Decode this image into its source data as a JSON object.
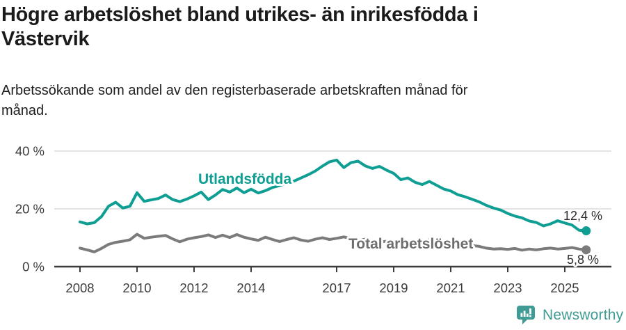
{
  "header": {
    "title": "Högre arbetslöshet bland utrikes- än inrikesfödda i\nVästervik",
    "subtitle": "Arbetssökande som andel av den registerbaserade arbetskraften månad för\nmånad."
  },
  "footer": {
    "brand": "Newsworthy",
    "logo_icon": "newsworthy-speech-bubble-bar-chart-icon"
  },
  "colors": {
    "foreign_born_line": "#0f9e93",
    "total_line": "#7b7b7b",
    "total_label": "#6e6e6e",
    "grid": "#dcdcdc",
    "axis": "#3c3c3c",
    "tick_label": "#3c3c3c",
    "end_value_label": "#2b2b2b",
    "brand_teal": "#3f9b93",
    "background": "#ffffff"
  },
  "chart_data": {
    "type": "line",
    "title": "Högre arbetslöshet bland utrikes- än inrikesfödda i Västervik",
    "subtitle": "Arbetssökande som andel av den registerbaserade arbetskraften månad för månad.",
    "xlabel": "",
    "ylabel": "",
    "grid": "horizontal",
    "legend_position": "inline-labels",
    "ylim": [
      0,
      40
    ],
    "x_range": [
      2008.0,
      2025.75
    ],
    "y_ticks": [
      {
        "value": 0,
        "label": "0 %"
      },
      {
        "value": 20,
        "label": "20 %"
      },
      {
        "value": 40,
        "label": "40 %"
      }
    ],
    "x_ticks": [
      {
        "value": 2008,
        "label": "2008"
      },
      {
        "value": 2010,
        "label": "2010"
      },
      {
        "value": 2012,
        "label": "2012"
      },
      {
        "value": 2014,
        "label": "2014"
      },
      {
        "value": 2017,
        "label": "2017"
      },
      {
        "value": 2019,
        "label": "2019"
      },
      {
        "value": 2021,
        "label": "2021"
      },
      {
        "value": 2023,
        "label": "2023"
      },
      {
        "value": 2025,
        "label": "2025"
      }
    ],
    "series": [
      {
        "name": "Utlandsfödda",
        "color": "#0f9e93",
        "end_value": 12.4,
        "end_label": "12,4 %",
        "points": [
          [
            2008.0,
            15.5
          ],
          [
            2008.25,
            14.8
          ],
          [
            2008.5,
            15.2
          ],
          [
            2008.75,
            17.3
          ],
          [
            2009.0,
            20.9
          ],
          [
            2009.25,
            22.3
          ],
          [
            2009.5,
            20.3
          ],
          [
            2009.75,
            20.9
          ],
          [
            2010.0,
            25.6
          ],
          [
            2010.25,
            22.6
          ],
          [
            2010.5,
            23.1
          ],
          [
            2010.75,
            23.6
          ],
          [
            2011.0,
            24.8
          ],
          [
            2011.25,
            23.2
          ],
          [
            2011.5,
            22.5
          ],
          [
            2011.75,
            23.4
          ],
          [
            2012.0,
            24.5
          ],
          [
            2012.25,
            25.8
          ],
          [
            2012.5,
            23.2
          ],
          [
            2012.75,
            24.8
          ],
          [
            2013.0,
            26.7
          ],
          [
            2013.25,
            25.8
          ],
          [
            2013.5,
            27.2
          ],
          [
            2013.75,
            25.6
          ],
          [
            2014.0,
            26.8
          ],
          [
            2014.25,
            25.5
          ],
          [
            2014.5,
            26.3
          ],
          [
            2014.75,
            27.4
          ],
          [
            2015.0,
            28.1
          ],
          [
            2015.25,
            28.8
          ],
          [
            2015.5,
            29.6
          ],
          [
            2015.75,
            30.7
          ],
          [
            2016.0,
            31.8
          ],
          [
            2016.25,
            33.1
          ],
          [
            2016.5,
            34.8
          ],
          [
            2016.75,
            36.3
          ],
          [
            2017.0,
            36.9
          ],
          [
            2017.25,
            34.3
          ],
          [
            2017.5,
            36.0
          ],
          [
            2017.75,
            36.5
          ],
          [
            2018.0,
            34.9
          ],
          [
            2018.25,
            34.0
          ],
          [
            2018.5,
            34.7
          ],
          [
            2018.75,
            33.4
          ],
          [
            2019.0,
            32.3
          ],
          [
            2019.25,
            30.1
          ],
          [
            2019.5,
            30.7
          ],
          [
            2019.75,
            29.2
          ],
          [
            2020.0,
            28.4
          ],
          [
            2020.25,
            29.5
          ],
          [
            2020.5,
            28.2
          ],
          [
            2020.75,
            26.9
          ],
          [
            2021.0,
            26.2
          ],
          [
            2021.25,
            24.9
          ],
          [
            2021.5,
            24.2
          ],
          [
            2021.75,
            23.3
          ],
          [
            2022.0,
            22.4
          ],
          [
            2022.25,
            21.2
          ],
          [
            2022.5,
            20.3
          ],
          [
            2022.75,
            19.6
          ],
          [
            2023.0,
            18.4
          ],
          [
            2023.25,
            17.5
          ],
          [
            2023.5,
            16.9
          ],
          [
            2023.75,
            15.8
          ],
          [
            2024.0,
            15.3
          ],
          [
            2024.25,
            14.1
          ],
          [
            2024.5,
            14.8
          ],
          [
            2024.75,
            15.9
          ],
          [
            2025.0,
            15.1
          ],
          [
            2025.25,
            14.4
          ],
          [
            2025.5,
            12.6
          ],
          [
            2025.75,
            12.4
          ]
        ]
      },
      {
        "name": "Total arbetslöshet",
        "color": "#7b7b7b",
        "label_color": "#6e6e6e",
        "end_value": 5.8,
        "end_label": "5,8 %",
        "points": [
          [
            2008.0,
            6.4
          ],
          [
            2008.25,
            5.8
          ],
          [
            2008.5,
            5.1
          ],
          [
            2008.75,
            6.3
          ],
          [
            2009.0,
            7.7
          ],
          [
            2009.25,
            8.4
          ],
          [
            2009.5,
            8.8
          ],
          [
            2009.75,
            9.3
          ],
          [
            2010.0,
            11.2
          ],
          [
            2010.25,
            9.8
          ],
          [
            2010.5,
            10.2
          ],
          [
            2010.75,
            10.5
          ],
          [
            2011.0,
            10.8
          ],
          [
            2011.25,
            9.6
          ],
          [
            2011.5,
            8.6
          ],
          [
            2011.75,
            9.5
          ],
          [
            2012.0,
            10.0
          ],
          [
            2012.25,
            10.4
          ],
          [
            2012.5,
            11.0
          ],
          [
            2012.75,
            10.1
          ],
          [
            2013.0,
            10.9
          ],
          [
            2013.25,
            10.1
          ],
          [
            2013.5,
            11.1
          ],
          [
            2013.75,
            10.2
          ],
          [
            2014.0,
            9.6
          ],
          [
            2014.25,
            9.1
          ],
          [
            2014.5,
            10.2
          ],
          [
            2014.75,
            9.4
          ],
          [
            2015.0,
            8.7
          ],
          [
            2015.25,
            9.4
          ],
          [
            2015.5,
            10.0
          ],
          [
            2015.75,
            9.2
          ],
          [
            2016.0,
            8.8
          ],
          [
            2016.25,
            9.5
          ],
          [
            2016.5,
            10.0
          ],
          [
            2016.75,
            9.4
          ],
          [
            2017.0,
            9.8
          ],
          [
            2017.25,
            10.3
          ],
          [
            2017.5,
            9.7
          ],
          [
            2017.75,
            9.1
          ],
          [
            2018.0,
            9.5
          ],
          [
            2018.25,
            8.9
          ],
          [
            2018.5,
            8.5
          ],
          [
            2018.75,
            8.8
          ],
          [
            2019.0,
            8.3
          ],
          [
            2019.25,
            8.0
          ],
          [
            2019.5,
            8.5
          ],
          [
            2019.75,
            8.1
          ],
          [
            2020.0,
            8.4
          ],
          [
            2020.25,
            9.3
          ],
          [
            2020.5,
            9.1
          ],
          [
            2020.75,
            8.7
          ],
          [
            2021.0,
            8.5
          ],
          [
            2021.25,
            8.1
          ],
          [
            2021.5,
            7.7
          ],
          [
            2021.75,
            7.3
          ],
          [
            2022.0,
            7.0
          ],
          [
            2022.25,
            6.4
          ],
          [
            2022.5,
            6.1
          ],
          [
            2022.75,
            6.2
          ],
          [
            2023.0,
            6.0
          ],
          [
            2023.25,
            6.3
          ],
          [
            2023.5,
            5.7
          ],
          [
            2023.75,
            6.1
          ],
          [
            2024.0,
            5.8
          ],
          [
            2024.25,
            6.2
          ],
          [
            2024.5,
            6.4
          ],
          [
            2024.75,
            6.1
          ],
          [
            2025.0,
            6.3
          ],
          [
            2025.25,
            6.6
          ],
          [
            2025.5,
            6.1
          ],
          [
            2025.75,
            5.8
          ]
        ]
      }
    ]
  }
}
